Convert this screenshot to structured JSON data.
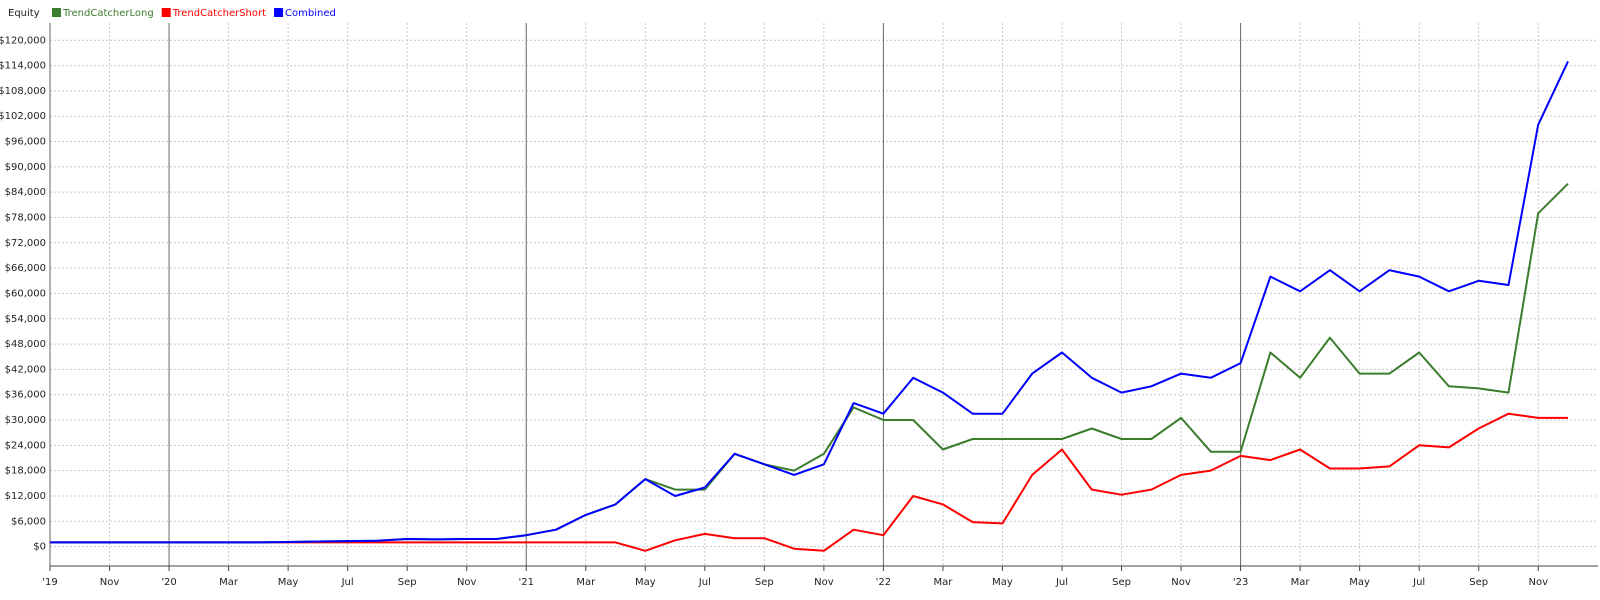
{
  "chart_data": {
    "type": "line",
    "legend_title": "Equity",
    "categories": [
      "'19",
      null,
      "Nov",
      null,
      "'20",
      null,
      "Mar",
      null,
      "May",
      null,
      "Jul",
      null,
      "Sep",
      null,
      "Nov",
      null,
      "'21",
      null,
      "Mar",
      null,
      "May",
      null,
      "Jul",
      null,
      "Sep",
      null,
      "Nov",
      null,
      "'22",
      null,
      "Mar",
      null,
      "May",
      null,
      "Jul",
      null,
      "Sep",
      null,
      "Nov",
      null,
      "'23",
      null,
      "Mar",
      null,
      "May",
      null,
      "Jul",
      null,
      "Sep",
      null,
      "Nov",
      null
    ],
    "series": [
      {
        "name": "TrendCatcherShort",
        "color": "#ff0000",
        "values": [
          1000,
          1000,
          1000,
          1000,
          1000,
          1000,
          1000,
          1000,
          1000,
          1000,
          1000,
          1000,
          1000,
          1000,
          1000,
          1000,
          1000,
          1000,
          1000,
          1000,
          -1000,
          1500,
          3000,
          2000,
          2000,
          -500,
          -1000,
          4000,
          2700,
          12000,
          10000,
          5800,
          5500,
          17000,
          23000,
          13500,
          12300,
          13500,
          17000,
          18000,
          21500,
          20500,
          23000,
          18500,
          18500,
          19000,
          24000,
          23500,
          28000,
          31500,
          30500,
          30500
        ]
      },
      {
        "name": "TrendCatcherLong",
        "color": "#3a7d2c",
        "values": [
          1000,
          1000,
          1000,
          1000,
          1000,
          1000,
          1000,
          1000,
          1100,
          1200,
          1300,
          1400,
          1800,
          1700,
          1800,
          1800,
          2700,
          4000,
          7500,
          10000,
          16000,
          13500,
          13500,
          22000,
          19500,
          18000,
          22000,
          33000,
          30000,
          30000,
          23000,
          25500,
          25500,
          25500,
          25500,
          28000,
          25500,
          25500,
          30500,
          22500,
          22500,
          46000,
          40000,
          49500,
          41000,
          41000,
          46000,
          38000,
          37500,
          36500,
          79000,
          86000
        ]
      },
      {
        "name": "Combined",
        "color": "#0000ff",
        "values": [
          1000,
          1000,
          1000,
          1000,
          1000,
          1000,
          1000,
          1000,
          1100,
          1200,
          1300,
          1400,
          1800,
          1700,
          1800,
          1800,
          2700,
          4000,
          7500,
          10000,
          16000,
          12000,
          14000,
          22000,
          19500,
          17000,
          19500,
          34000,
          31500,
          40000,
          36500,
          31500,
          31500,
          41000,
          46000,
          40000,
          36500,
          38000,
          41000,
          40000,
          43500,
          64000,
          60500,
          65500,
          60500,
          65500,
          64000,
          60500,
          63000,
          62000,
          100000,
          115000
        ]
      }
    ],
    "legend_order": [
      1,
      0,
      2
    ],
    "ylim": [
      -4600,
      122200
    ],
    "yticks": [
      {
        "value": 0,
        "label": "$0"
      },
      {
        "value": 6000,
        "label": "$6,000"
      },
      {
        "value": 12000,
        "label": "$12,000"
      },
      {
        "value": 18000,
        "label": "$18,000"
      },
      {
        "value": 24000,
        "label": "$24,000"
      },
      {
        "value": 30000,
        "label": "$30,000"
      },
      {
        "value": 36000,
        "label": "$36,000"
      },
      {
        "value": 42000,
        "label": "$42,000"
      },
      {
        "value": 48000,
        "label": "$48,000"
      },
      {
        "value": 54000,
        "label": "$54,000"
      },
      {
        "value": 60000,
        "label": "$60,000"
      },
      {
        "value": 66000,
        "label": "$66,000"
      },
      {
        "value": 72000,
        "label": "$72,000"
      },
      {
        "value": 78000,
        "label": "$78,000"
      },
      {
        "value": 84000,
        "label": "$84,000"
      },
      {
        "value": 90000,
        "label": "$90,000"
      },
      {
        "value": 96000,
        "label": "$96,000"
      },
      {
        "value": 102000,
        "label": "$102,000"
      },
      {
        "value": 108000,
        "label": "$108,000"
      },
      {
        "value": 114000,
        "label": "$114,000"
      },
      {
        "value": 120000,
        "label": "$120,000"
      }
    ],
    "grid": true
  }
}
